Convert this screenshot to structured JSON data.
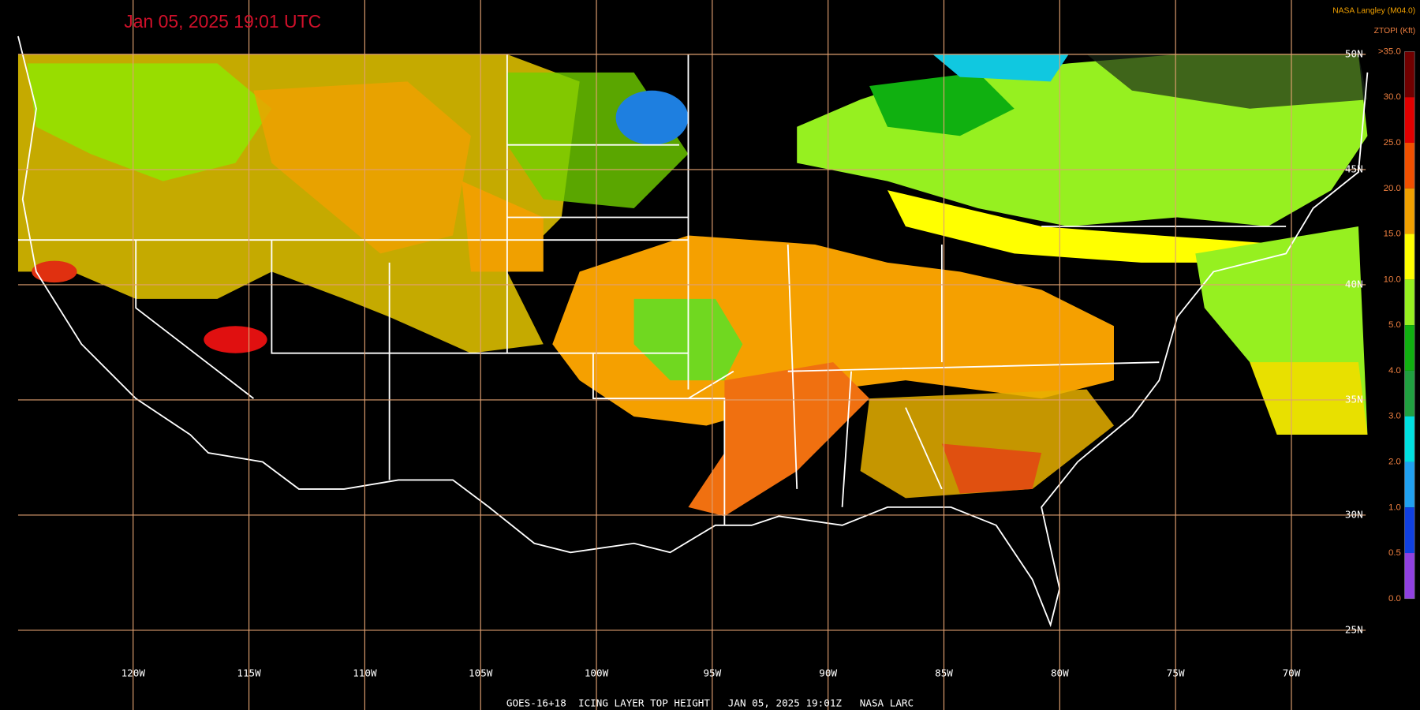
{
  "header": {
    "timestamp": "Jan 05, 2025 19:01 UTC",
    "source": "NASA Langley (M04.0)",
    "product": "ZTOPI (Kft)"
  },
  "legend": {
    "labels": [
      ">35.0",
      "30.0",
      "25.0",
      "20.0",
      "15.0",
      "10.0",
      "5.0",
      "4.0",
      "3.0",
      "2.0",
      "1.0",
      "0.5",
      "0.0"
    ]
  },
  "grid": {
    "longitudes": [
      "120W",
      "115W",
      "110W",
      "105W",
      "100W",
      "95W",
      "90W",
      "85W",
      "80W",
      "75W",
      "70W"
    ],
    "latitudes": [
      "50N",
      "45N",
      "40N",
      "35N",
      "30N",
      "25N"
    ]
  },
  "footer": "GOES-16+18  ICING LAYER TOP HEIGHT   JAN 05, 2025 19:01Z   NASA LARC"
}
